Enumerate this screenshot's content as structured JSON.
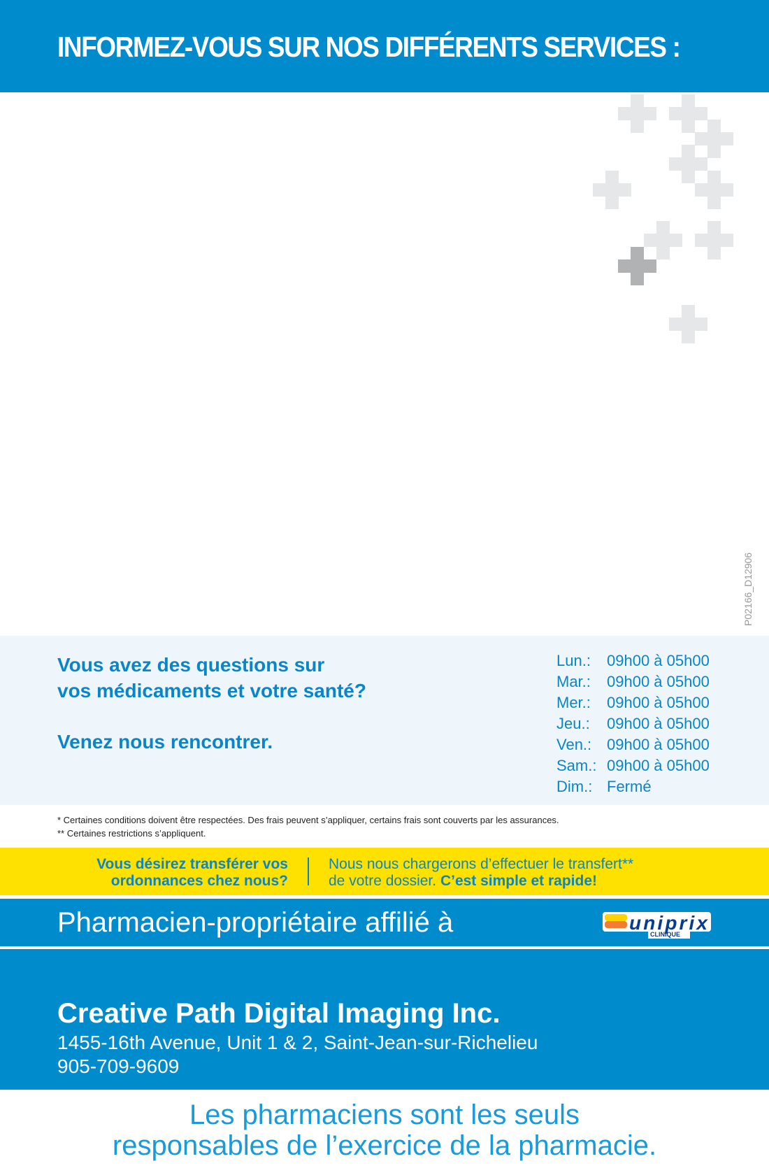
{
  "header": {
    "title": "INFORMEZ-VOUS SUR NOS DIFFÉRENTS SERVICES :"
  },
  "code": "P02166_D12906",
  "questions": {
    "line1": "Vous avez des questions sur",
    "line2": "vos médicaments et votre santé?",
    "line3": "Venez nous rencontrer."
  },
  "hours": [
    {
      "day": "Lun.:",
      "time": "09h00 à 05h00"
    },
    {
      "day": "Mar.:",
      "time": "09h00 à 05h00"
    },
    {
      "day": "Mer.:",
      "time": "09h00 à 05h00"
    },
    {
      "day": "Jeu.:",
      "time": "09h00 à 05h00"
    },
    {
      "day": "Ven.:",
      "time": "09h00 à 05h00"
    },
    {
      "day": "Sam.:",
      "time": "09h00 à 05h00"
    },
    {
      "day": "Dim.:",
      "time": "Fermé"
    }
  ],
  "notes": [
    "* Certaines conditions doivent être respectées. Des frais peuvent s’appliquer, certains frais sont couverts par les assurances.",
    "** Certaines restrictions s’appliquent."
  ],
  "transfer": {
    "left1": "Vous désirez transférer vos",
    "left2": "ordonnances chez nous?",
    "right1": "Nous nous chargerons d’effectuer le transfert**",
    "right2": "de votre dossier.",
    "right2_bold": "C’est simple et rapide!"
  },
  "affiliate": {
    "text": "Pharmacien-propriétaire affilié à",
    "logo": "uniprix",
    "logo_sub": "CLINIQUE"
  },
  "pharmacy": {
    "name": "Creative Path Digital Imaging Inc.",
    "address": "1455-16th Avenue, Unit 1 & 2, Saint-Jean-sur-Richelieu",
    "phone": "905-709-9609"
  },
  "tagline": {
    "line1": "Les pharmaciens sont les seuls",
    "line2": "responsables de l’exercice de la pharmacie."
  },
  "colors": {
    "blue": "#008bcc",
    "text_blue": "#0a86c8",
    "yellow": "#ffe100",
    "light": "#eef5fb"
  }
}
